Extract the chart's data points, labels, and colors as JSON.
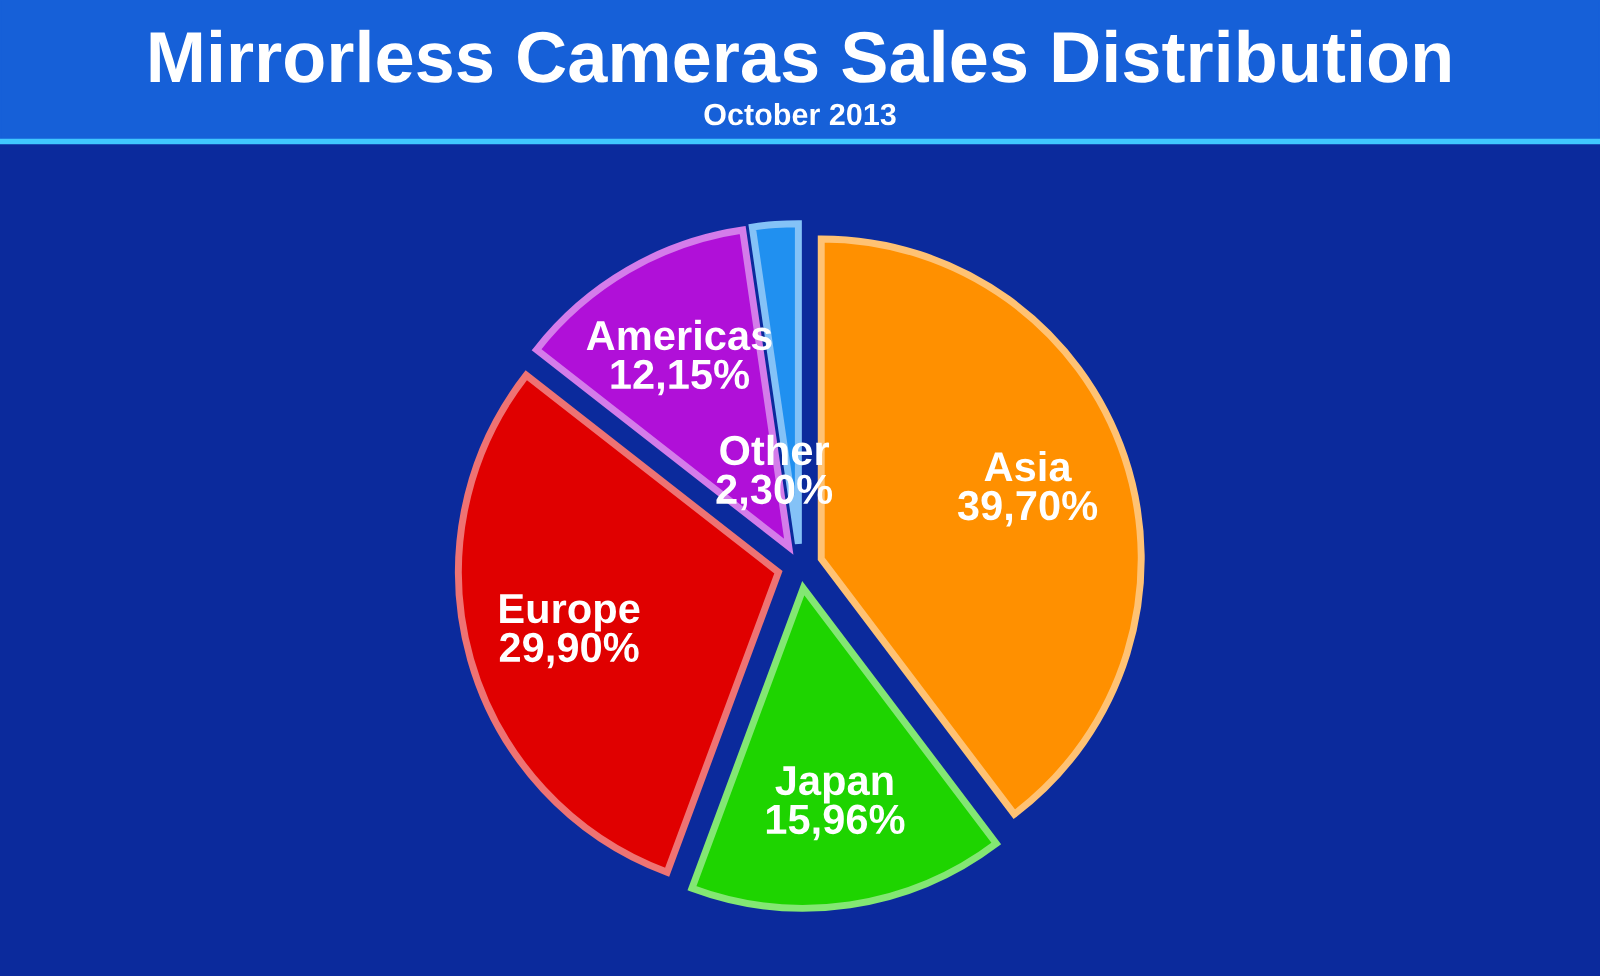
{
  "chart_data": {
    "type": "pie",
    "title": "Mirrorless Cameras Sales Distribution",
    "subtitle": "October 2013",
    "categories": [
      "Asia",
      "Japan",
      "Europe",
      "Americas",
      "Other"
    ],
    "values": [
      39.7,
      15.96,
      29.9,
      12.15,
      2.3
    ],
    "colors": [
      "#ff9000",
      "#1ed400",
      "#e00000",
      "#b010d8",
      "#2090f0"
    ],
    "value_labels": [
      "39,70%",
      "15,96%",
      "29,90%",
      "12,15%",
      "2,30%"
    ]
  }
}
